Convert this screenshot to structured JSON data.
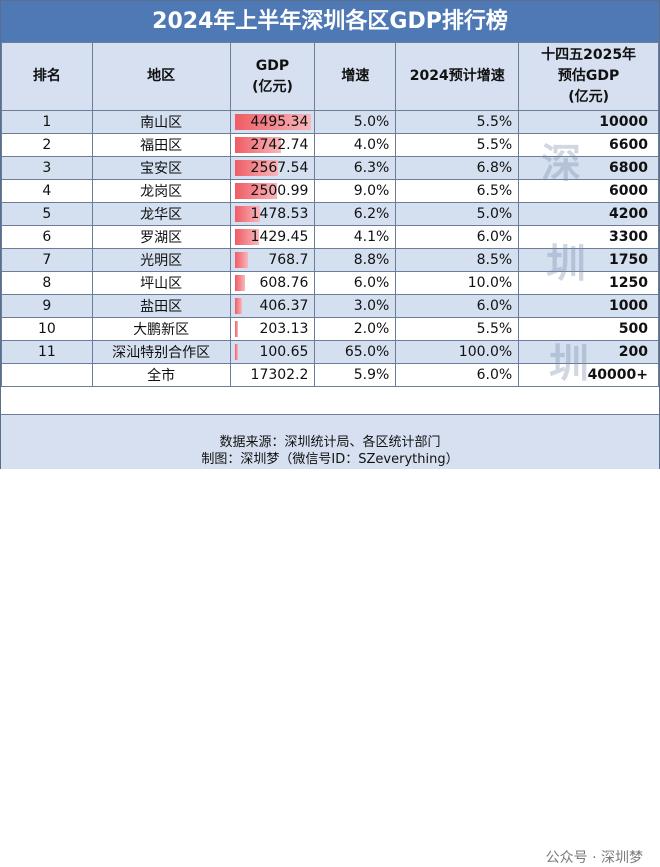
{
  "title": "2024年上半年深圳各区GDP排行榜",
  "headers": {
    "rank": "排名",
    "district": "地区",
    "gdp_line1": "GDP",
    "gdp_line2": "(亿元)",
    "growth": "增速",
    "forecast": "2024预计增速",
    "est_line1": "十四五2025年",
    "est_line2": "预估GDP",
    "est_line3": "(亿元)"
  },
  "rows": [
    {
      "rank": "1",
      "district": "南山区",
      "gdp": "4495.34",
      "gdp_value": 4495.34,
      "growth": "5.0%",
      "forecast": "5.5%",
      "est": "10000"
    },
    {
      "rank": "2",
      "district": "福田区",
      "gdp": "2742.74",
      "gdp_value": 2742.74,
      "growth": "4.0%",
      "forecast": "5.5%",
      "est": "6600"
    },
    {
      "rank": "3",
      "district": "宝安区",
      "gdp": "2567.54",
      "gdp_value": 2567.54,
      "growth": "6.3%",
      "forecast": "6.8%",
      "est": "6800"
    },
    {
      "rank": "4",
      "district": "龙岗区",
      "gdp": "2500.99",
      "gdp_value": 2500.99,
      "growth": "9.0%",
      "forecast": "6.5%",
      "est": "6000"
    },
    {
      "rank": "5",
      "district": "龙华区",
      "gdp": "1478.53",
      "gdp_value": 1478.53,
      "growth": "6.2%",
      "forecast": "5.0%",
      "est": "4200"
    },
    {
      "rank": "6",
      "district": "罗湖区",
      "gdp": "1429.45",
      "gdp_value": 1429.45,
      "growth": "4.1%",
      "forecast": "6.0%",
      "est": "3300"
    },
    {
      "rank": "7",
      "district": "光明区",
      "gdp": "768.7",
      "gdp_value": 768.7,
      "growth": "8.8%",
      "forecast": "8.5%",
      "est": "1750"
    },
    {
      "rank": "8",
      "district": "坪山区",
      "gdp": "608.76",
      "gdp_value": 608.76,
      "growth": "6.0%",
      "forecast": "10.0%",
      "est": "1250"
    },
    {
      "rank": "9",
      "district": "盐田区",
      "gdp": "406.37",
      "gdp_value": 406.37,
      "growth": "3.0%",
      "forecast": "6.0%",
      "est": "1000"
    },
    {
      "rank": "10",
      "district": "大鹏新区",
      "gdp": "203.13",
      "gdp_value": 203.13,
      "growth": "2.0%",
      "forecast": "5.5%",
      "est": "500"
    },
    {
      "rank": "11",
      "district": "深汕特别合作区",
      "gdp": "100.65",
      "gdp_value": 100.65,
      "growth": "65.0%",
      "forecast": "100.0%",
      "est": "200"
    }
  ],
  "total": {
    "rank": "",
    "district": "全市",
    "gdp": "17302.2",
    "growth": "5.9%",
    "forecast": "6.0%",
    "est": "40000+"
  },
  "footer": {
    "source": "数据来源：深圳统计局、各区统计部门",
    "author": "制图：深圳梦（微信号ID：SZeverything）"
  },
  "watermark": {
    "text": "深 圳",
    "account": "公众号 · 深圳梦"
  },
  "colors": {
    "title_bg": "#4e79b5",
    "header_bg": "#d6e0f0",
    "alt_row_bg": "#d4dff0",
    "bar": "#ef5c64"
  }
}
